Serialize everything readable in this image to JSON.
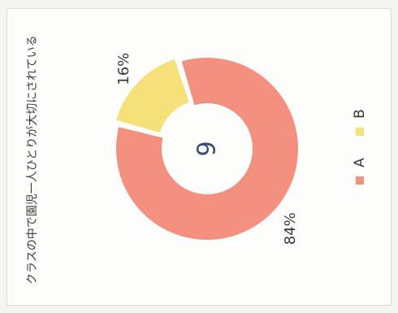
{
  "chart_data": {
    "type": "pie",
    "variant": "donut",
    "title": "クラスの中で園児一人ひとりが大切にされている",
    "center_label": "9",
    "categories": [
      "A",
      "B"
    ],
    "values": [
      84,
      16
    ],
    "data_labels": [
      "84%",
      "16%"
    ],
    "colors": [
      "#f4907f",
      "#f5e07a"
    ],
    "legend_placement": "right",
    "orientation": "rotated 90° counter-clockwise"
  }
}
